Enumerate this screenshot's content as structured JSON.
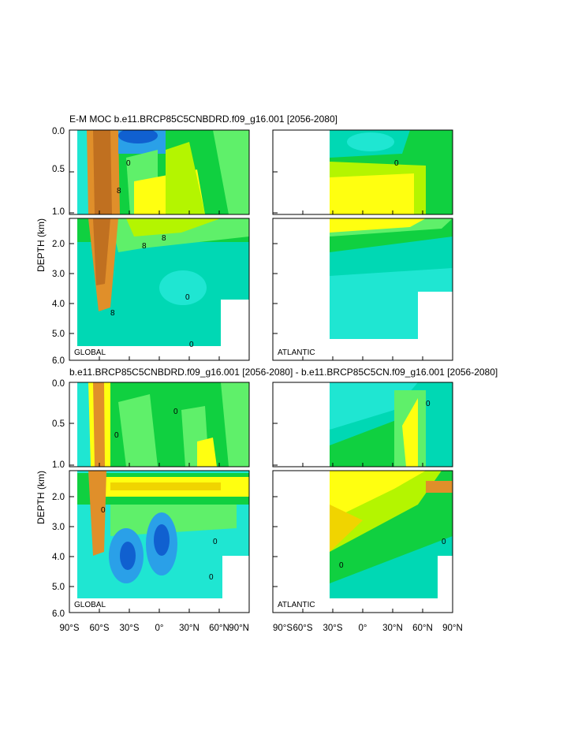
{
  "chart_data": [
    {
      "type": "heatmap",
      "title": "E-M MOC  b.e11.BRCP85C5CNBDRD.f09_g16.001 [2056-2080]",
      "ylabel": "DEPTH (km)",
      "upper_yticks": [
        "0.0",
        "0.5",
        "1.0"
      ],
      "lower_yticks": [
        "2.0",
        "3.0",
        "4.0",
        "5.0",
        "6.0"
      ],
      "xticks": [
        "90°S",
        "60°S",
        "30°S",
        "0°",
        "30°N",
        "60°N",
        "90°N"
      ],
      "ylim_km": [
        0,
        6
      ],
      "panels": [
        {
          "label": "GLOBAL",
          "xlim_deg": [
            -90,
            90
          ],
          "data_lat_range": [
            -85,
            90
          ]
        },
        {
          "label": "ATLANTIC",
          "xlim_deg": [
            -90,
            90
          ],
          "data_lat_range": [
            -33,
            90
          ]
        }
      ],
      "contour_labels": [
        "0",
        "8",
        "8",
        "8",
        "8",
        "0",
        "0",
        "0"
      ]
    },
    {
      "type": "heatmap",
      "title": "b.e11.BRCP85C5CNBDRD.f09_g16.001 [2056-2080] - b.e11.BRCP85C5CN.f09_g16.001 [2056-2080]",
      "ylabel": "DEPTH (km)",
      "upper_yticks": [
        "0.0",
        "0.5",
        "1.0"
      ],
      "lower_yticks": [
        "2.0",
        "3.0",
        "4.0",
        "5.0",
        "6.0"
      ],
      "xticks": [
        "90°S",
        "60°S",
        "30°S",
        "0°",
        "30°N",
        "60°N",
        "90°N"
      ],
      "ylim_km": [
        0,
        6
      ],
      "panels": [
        {
          "label": "GLOBAL",
          "xlim_deg": [
            -90,
            90
          ],
          "data_lat_range": [
            -85,
            90
          ]
        },
        {
          "label": "ATLANTIC",
          "xlim_deg": [
            -90,
            90
          ],
          "data_lat_range": [
            -33,
            90
          ]
        }
      ],
      "contour_labels": [
        "0",
        "0",
        "0",
        "0",
        "0",
        "0",
        "0",
        "0"
      ]
    }
  ],
  "colors": {
    "cyan": "#1fe6d2",
    "teal": "#00d8b4",
    "lightgreen": "#5ff06a",
    "green": "#10d040",
    "yellowgreen": "#b4f500",
    "yellow": "#ffff10",
    "gold": "#f0d400",
    "orange": "#e08f2a",
    "darkorange": "#c07020",
    "blue": "#2aa0e8",
    "darkblue": "#1060d0"
  }
}
